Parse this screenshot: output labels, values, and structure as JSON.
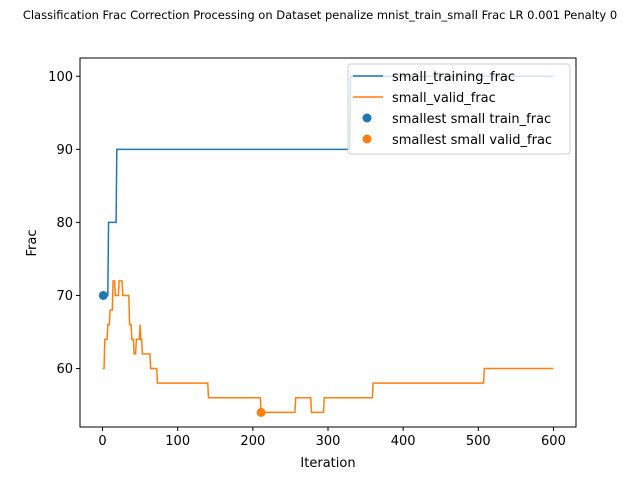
{
  "chart_data": {
    "type": "line",
    "title": "Classification Frac Correction Processing on Dataset penalize mnist_train_small Frac LR 0.001 Penalty 0",
    "xlabel": "Iteration",
    "ylabel": "Frac",
    "xlim": [
      -30,
      630
    ],
    "ylim": [
      52,
      102.5
    ],
    "xticks": [
      0,
      100,
      200,
      300,
      400,
      500,
      600
    ],
    "yticks": [
      60,
      70,
      80,
      90,
      100
    ],
    "grid": false,
    "legend_position": "top-right",
    "series": [
      {
        "name": "small_training_frac",
        "color": "#1f77b4",
        "points": [
          [
            0,
            70
          ],
          [
            7,
            70
          ],
          [
            8,
            80
          ],
          [
            18,
            80
          ],
          [
            19,
            90
          ],
          [
            329,
            90
          ],
          [
            330,
            100
          ],
          [
            600,
            100
          ]
        ]
      },
      {
        "name": "small_valid_frac",
        "color": "#ff7f0e",
        "points": [
          [
            0,
            60
          ],
          [
            2,
            60
          ],
          [
            3,
            64
          ],
          [
            6,
            64
          ],
          [
            7,
            66
          ],
          [
            9,
            66
          ],
          [
            10,
            68
          ],
          [
            13,
            68
          ],
          [
            14,
            72
          ],
          [
            16,
            72
          ],
          [
            17,
            70
          ],
          [
            21,
            70
          ],
          [
            22,
            72
          ],
          [
            26,
            72
          ],
          [
            27,
            70
          ],
          [
            35,
            70
          ],
          [
            36,
            66
          ],
          [
            38,
            66
          ],
          [
            39,
            64
          ],
          [
            41,
            64
          ],
          [
            42,
            62
          ],
          [
            44,
            62
          ],
          [
            45,
            64
          ],
          [
            49,
            64
          ],
          [
            50,
            66
          ],
          [
            51,
            64
          ],
          [
            52,
            64
          ],
          [
            53,
            62
          ],
          [
            63,
            62
          ],
          [
            64,
            60
          ],
          [
            72,
            60
          ],
          [
            73,
            58
          ],
          [
            140,
            58
          ],
          [
            141,
            56
          ],
          [
            210,
            56
          ],
          [
            211,
            54
          ],
          [
            256,
            54
          ],
          [
            257,
            56
          ],
          [
            277,
            56
          ],
          [
            278,
            54
          ],
          [
            294,
            54
          ],
          [
            295,
            56
          ],
          [
            359,
            56
          ],
          [
            360,
            58
          ],
          [
            507,
            58
          ],
          [
            508,
            60
          ],
          [
            600,
            60
          ]
        ]
      }
    ],
    "markers": [
      {
        "name": "smallest small train_frac",
        "x": 1,
        "y": 70,
        "color": "#1f77b4"
      },
      {
        "name": "smallest small valid_frac",
        "x": 211,
        "y": 54,
        "color": "#ff7f0e"
      }
    ]
  }
}
